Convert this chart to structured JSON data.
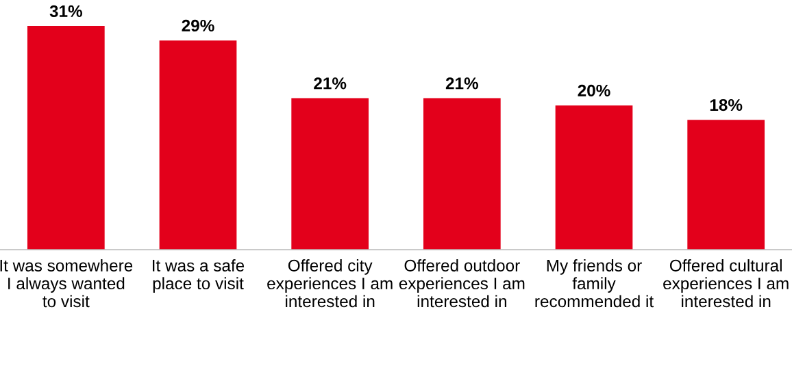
{
  "chart_data": {
    "type": "bar",
    "categories": [
      "It was somewhere I always wanted to visit",
      "It was a safe place to visit",
      "Offered city experiences I am interested in",
      "Offered outdoor experiences I am interested in",
      "My friends or family recommended it",
      "Offered cultural experiences I am interested in"
    ],
    "values": [
      31,
      29,
      21,
      21,
      20,
      18
    ],
    "value_labels": [
      "31%",
      "29%",
      "21%",
      "21%",
      "20%",
      "18%"
    ],
    "color": "#e3001b",
    "grid": false,
    "legend": false
  }
}
